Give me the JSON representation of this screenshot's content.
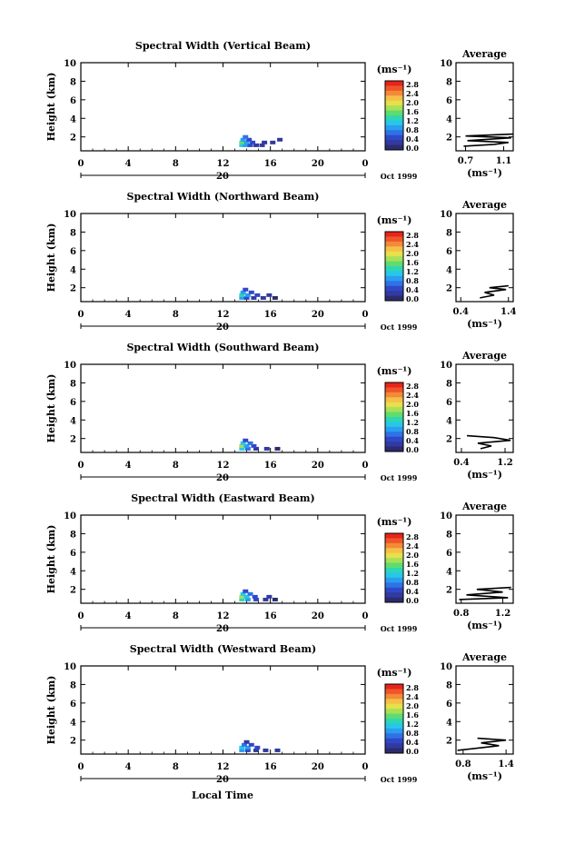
{
  "figure": {
    "xlabel": "Local Time",
    "date_label": "Oct 1999",
    "day_label": "20"
  },
  "colorscale": {
    "unit_label": "(ms⁻¹)",
    "ticks": [
      "2.8",
      "2.4",
      "2.0",
      "1.6",
      "1.2",
      "0.8",
      "0.4",
      "0.0"
    ],
    "colors": [
      "#e8241c",
      "#f0552a",
      "#f38a38",
      "#f6bf48",
      "#e6e04a",
      "#a8e058",
      "#5fdc6e",
      "#2ed6b4",
      "#28c6e8",
      "#2a9ef0",
      "#2f72e6",
      "#3048c8",
      "#303aa0",
      "#2b2b6e"
    ]
  },
  "chart_data": [
    {
      "type": "heatmap",
      "title": "Spectral Width (Vertical Beam)",
      "ylabel": "Height (km)",
      "x_ticks": [
        "0",
        "4",
        "8",
        "12",
        "16",
        "20",
        "0"
      ],
      "y_ticks": [
        "2",
        "4",
        "6",
        "8",
        "10"
      ],
      "xlim": [
        0,
        24
      ],
      "ylim": [
        0.5,
        10
      ],
      "cells": [
        {
          "t": 13.6,
          "h": 1.0,
          "v": 1.2
        },
        {
          "t": 13.9,
          "h": 1.0,
          "v": 0.8
        },
        {
          "t": 14.3,
          "h": 1.0,
          "v": 0.6
        },
        {
          "t": 14.8,
          "h": 1.0,
          "v": 0.4
        },
        {
          "t": 15.3,
          "h": 1.0,
          "v": 0.3
        },
        {
          "t": 13.6,
          "h": 1.3,
          "v": 1.5
        },
        {
          "t": 14.0,
          "h": 1.3,
          "v": 1.0
        },
        {
          "t": 14.5,
          "h": 1.3,
          "v": 0.5
        },
        {
          "t": 15.5,
          "h": 1.3,
          "v": 0.4
        },
        {
          "t": 16.2,
          "h": 1.3,
          "v": 0.3
        },
        {
          "t": 13.7,
          "h": 1.6,
          "v": 0.9
        },
        {
          "t": 14.2,
          "h": 1.6,
          "v": 0.6
        },
        {
          "t": 16.8,
          "h": 1.6,
          "v": 0.3
        },
        {
          "t": 13.9,
          "h": 1.9,
          "v": 0.7
        }
      ],
      "profile": {
        "title": "Average",
        "xlabel": "(ms⁻¹)",
        "x_ticks": [
          "0.7",
          "1.1"
        ],
        "xlim": [
          0.6,
          1.2
        ],
        "y_ticks": [
          "2",
          "4",
          "6",
          "8",
          "10"
        ],
        "ylim": [
          0.5,
          10
        ],
        "x": [
          0.68,
          1.0,
          1.15,
          0.72,
          1.18,
          0.7,
          1.2
        ],
        "y": [
          1.0,
          1.2,
          1.4,
          1.6,
          1.9,
          2.1,
          2.3
        ]
      }
    },
    {
      "type": "heatmap",
      "title": "Spectral Width (Northward Beam)",
      "ylabel": "Height (km)",
      "x_ticks": [
        "0",
        "4",
        "8",
        "12",
        "16",
        "20",
        "0"
      ],
      "y_ticks": [
        "2",
        "4",
        "6",
        "8",
        "10"
      ],
      "xlim": [
        0,
        24
      ],
      "ylim": [
        0.5,
        10
      ],
      "cells": [
        {
          "t": 13.6,
          "h": 0.8,
          "v": 1.0
        },
        {
          "t": 14.0,
          "h": 0.8,
          "v": 0.6
        },
        {
          "t": 14.6,
          "h": 0.8,
          "v": 0.4
        },
        {
          "t": 15.4,
          "h": 0.8,
          "v": 0.3
        },
        {
          "t": 16.4,
          "h": 0.8,
          "v": 0.2
        },
        {
          "t": 13.6,
          "h": 1.1,
          "v": 1.4
        },
        {
          "t": 14.1,
          "h": 1.1,
          "v": 0.9
        },
        {
          "t": 14.9,
          "h": 1.1,
          "v": 0.5
        },
        {
          "t": 15.9,
          "h": 1.1,
          "v": 0.4
        },
        {
          "t": 13.7,
          "h": 1.4,
          "v": 0.8
        },
        {
          "t": 14.4,
          "h": 1.4,
          "v": 0.6
        },
        {
          "t": 13.9,
          "h": 1.7,
          "v": 0.5
        }
      ],
      "profile": {
        "title": "Average",
        "xlabel": "(ms⁻¹)",
        "x_ticks": [
          "0.4",
          "1.4"
        ],
        "xlim": [
          0.3,
          1.5
        ],
        "y_ticks": [
          "2",
          "4",
          "6",
          "8",
          "10"
        ],
        "ylim": [
          0.5,
          10
        ],
        "x": [
          0.8,
          1.1,
          0.9,
          1.35,
          1.0,
          1.4
        ],
        "y": [
          0.9,
          1.2,
          1.5,
          1.8,
          2.0,
          2.2
        ]
      }
    },
    {
      "type": "heatmap",
      "title": "Spectral Width (Southward Beam)",
      "ylabel": "Height (km)",
      "x_ticks": [
        "0",
        "4",
        "8",
        "12",
        "16",
        "20",
        "0"
      ],
      "y_ticks": [
        "2",
        "4",
        "6",
        "8",
        "10"
      ],
      "xlim": [
        0,
        24
      ],
      "ylim": [
        0.5,
        10
      ],
      "cells": [
        {
          "t": 13.6,
          "h": 0.8,
          "v": 1.2
        },
        {
          "t": 14.1,
          "h": 0.8,
          "v": 0.7
        },
        {
          "t": 14.8,
          "h": 0.8,
          "v": 0.4
        },
        {
          "t": 15.7,
          "h": 0.8,
          "v": 0.3
        },
        {
          "t": 16.6,
          "h": 0.8,
          "v": 0.2
        },
        {
          "t": 13.6,
          "h": 1.1,
          "v": 1.6
        },
        {
          "t": 14.0,
          "h": 1.1,
          "v": 1.0
        },
        {
          "t": 14.6,
          "h": 1.1,
          "v": 0.6
        },
        {
          "t": 13.7,
          "h": 1.4,
          "v": 1.1
        },
        {
          "t": 14.3,
          "h": 1.4,
          "v": 0.7
        },
        {
          "t": 13.9,
          "h": 1.7,
          "v": 0.6
        }
      ],
      "profile": {
        "title": "Average",
        "xlabel": "(ms⁻¹)",
        "x_ticks": [
          "0.4",
          "1.2"
        ],
        "xlim": [
          0.3,
          1.35
        ],
        "y_ticks": [
          "2",
          "4",
          "6",
          "8",
          "10"
        ],
        "ylim": [
          0.5,
          10
        ],
        "x": [
          0.75,
          0.95,
          0.7,
          1.3,
          1.0,
          0.5
        ],
        "y": [
          0.9,
          1.2,
          1.5,
          1.8,
          2.1,
          2.3
        ]
      }
    },
    {
      "type": "heatmap",
      "title": "Spectral Width (Eastward Beam)",
      "ylabel": "Height (km)",
      "x_ticks": [
        "0",
        "4",
        "8",
        "12",
        "16",
        "20",
        "0"
      ],
      "y_ticks": [
        "2",
        "4",
        "6",
        "8",
        "10"
      ],
      "xlim": [
        0,
        24
      ],
      "ylim": [
        0.5,
        10
      ],
      "cells": [
        {
          "t": 13.6,
          "h": 0.8,
          "v": 1.3
        },
        {
          "t": 14.1,
          "h": 0.8,
          "v": 0.8
        },
        {
          "t": 14.8,
          "h": 0.8,
          "v": 0.5
        },
        {
          "t": 15.6,
          "h": 0.8,
          "v": 0.3
        },
        {
          "t": 16.4,
          "h": 0.8,
          "v": 0.2
        },
        {
          "t": 13.6,
          "h": 1.1,
          "v": 1.7
        },
        {
          "t": 14.0,
          "h": 1.1,
          "v": 1.1
        },
        {
          "t": 14.7,
          "h": 1.1,
          "v": 0.6
        },
        {
          "t": 15.9,
          "h": 1.1,
          "v": 0.4
        },
        {
          "t": 13.7,
          "h": 1.4,
          "v": 1.2
        },
        {
          "t": 14.3,
          "h": 1.4,
          "v": 0.7
        },
        {
          "t": 13.9,
          "h": 1.7,
          "v": 0.6
        }
      ],
      "profile": {
        "title": "Average",
        "xlabel": "(ms⁻¹)",
        "x_ticks": [
          "0.8",
          "1.2"
        ],
        "xlim": [
          0.75,
          1.3
        ],
        "y_ticks": [
          "2",
          "4",
          "6",
          "8",
          "10"
        ],
        "ylim": [
          0.5,
          10
        ],
        "x": [
          0.78,
          1.25,
          0.85,
          1.2,
          0.95,
          1.28
        ],
        "y": [
          0.9,
          1.1,
          1.4,
          1.7,
          2.0,
          2.2
        ]
      }
    },
    {
      "type": "heatmap",
      "title": "Spectral Width (Westward Beam)",
      "ylabel": "Height (km)",
      "x_ticks": [
        "0",
        "4",
        "8",
        "12",
        "16",
        "20",
        "0"
      ],
      "y_ticks": [
        "2",
        "4",
        "6",
        "8",
        "10"
      ],
      "xlim": [
        0,
        24
      ],
      "ylim": [
        0.5,
        10
      ],
      "cells": [
        {
          "t": 13.6,
          "h": 0.8,
          "v": 0.9
        },
        {
          "t": 14.1,
          "h": 0.8,
          "v": 0.6
        },
        {
          "t": 14.8,
          "h": 0.8,
          "v": 0.4
        },
        {
          "t": 15.6,
          "h": 0.8,
          "v": 0.3
        },
        {
          "t": 16.6,
          "h": 0.8,
          "v": 0.3
        },
        {
          "t": 13.6,
          "h": 1.1,
          "v": 1.2
        },
        {
          "t": 14.1,
          "h": 1.1,
          "v": 0.8
        },
        {
          "t": 14.9,
          "h": 1.1,
          "v": 0.5
        },
        {
          "t": 13.8,
          "h": 1.4,
          "v": 0.7
        },
        {
          "t": 14.4,
          "h": 1.4,
          "v": 0.5
        },
        {
          "t": 14.0,
          "h": 1.7,
          "v": 0.4
        }
      ],
      "profile": {
        "title": "Average",
        "xlabel": "(ms⁻¹)",
        "x_ticks": [
          "0.8",
          "1.4"
        ],
        "xlim": [
          0.7,
          1.5
        ],
        "y_ticks": [
          "2",
          "4",
          "6",
          "8",
          "10"
        ],
        "ylim": [
          0.5,
          10
        ],
        "x": [
          0.72,
          0.95,
          1.3,
          1.05,
          1.4,
          1.0
        ],
        "y": [
          0.9,
          1.1,
          1.4,
          1.7,
          2.0,
          2.2
        ]
      }
    }
  ]
}
